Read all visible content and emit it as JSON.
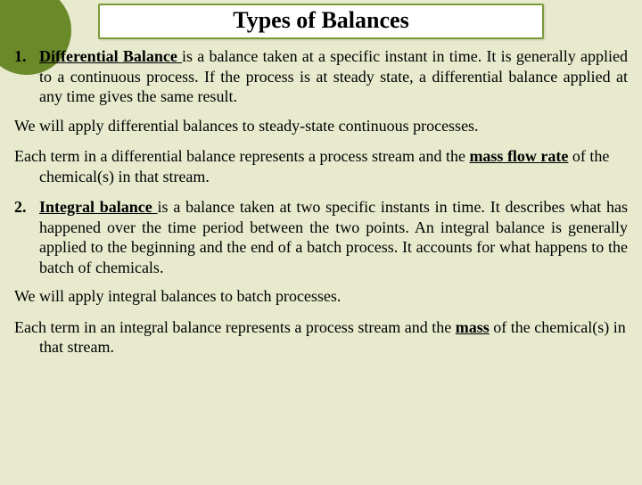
{
  "colors": {
    "background": "#e8eace",
    "title_border": "#7a9a3a",
    "title_bg": "#ffffff",
    "corner_accent": "#6a8a2a",
    "text": "#000000"
  },
  "title": "Types of Balances",
  "item1": {
    "num": "1.",
    "term": "Differential Balance ",
    "rest": "is a balance taken at a specific instant in time. It is generally applied to a continuous process. If the process is at steady state, a differential balance applied at any time gives the same result."
  },
  "p1": "We will apply differential balances to steady-state continuous processes.",
  "p2": {
    "before": "Each term in a differential balance represents a process stream and  the ",
    "bold": "mass flow rate",
    "after": " of  the chemical(s) in that stream."
  },
  "item2": {
    "num": "2.",
    "term": "Integral balance ",
    "rest": "is a balance taken at two specific instants in time. It describes what has happened over the time period between the two points. An integral balance is generally applied to the beginning and the end of a batch process. It accounts for what happens to the batch of chemicals."
  },
  "p3": "We will apply integral balances to batch processes.",
  "p4": {
    "before": "Each term in an integral balance represents a process stream and  the ",
    "bold": "mass",
    "after": " of the chemical(s) in that stream."
  }
}
